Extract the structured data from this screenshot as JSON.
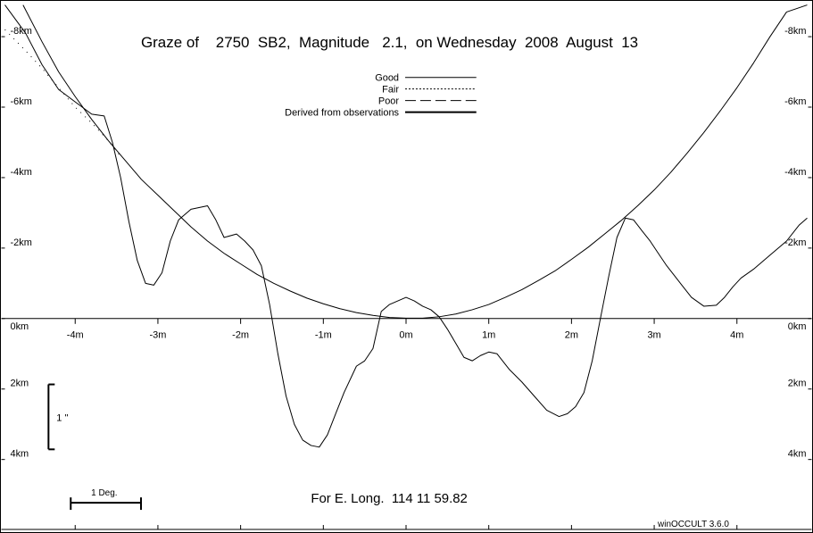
{
  "chart_data": {
    "type": "line",
    "title": "Graze of    2750  SB2,  Magnitude   2.1,  on Wednesday  2008  August  13",
    "footer": "For E. Long.  114 11 59.82",
    "software": "winOCCULT 3.6.0",
    "scale_bar_label": "1 Deg.",
    "vertical_scale_label": "1 ''",
    "xlim": [
      -4.85,
      4.85
    ],
    "ylim": [
      4.2,
      -8.9
    ],
    "x_ticks": [
      {
        "value": -4,
        "label": "-4m"
      },
      {
        "value": -3,
        "label": "-3m"
      },
      {
        "value": -2,
        "label": "-2m"
      },
      {
        "value": -1,
        "label": "-1m"
      },
      {
        "value": 0,
        "label": "0m"
      },
      {
        "value": 1,
        "label": "1m"
      },
      {
        "value": 2,
        "label": "2m"
      },
      {
        "value": 3,
        "label": "3m"
      },
      {
        "value": 4,
        "label": "4m"
      }
    ],
    "y_ticks": [
      {
        "value": -8,
        "label": "-8km"
      },
      {
        "value": -6,
        "label": "-6km"
      },
      {
        "value": -4,
        "label": "-4km"
      },
      {
        "value": -2,
        "label": "-2km"
      },
      {
        "value": 0,
        "label": "0km"
      },
      {
        "value": 2,
        "label": "2km"
      },
      {
        "value": 4,
        "label": "4km"
      }
    ],
    "legend": [
      {
        "label": "Good",
        "style": "solid"
      },
      {
        "label": "Fair",
        "style": "dotted"
      },
      {
        "label": "Poor",
        "style": "dashed"
      },
      {
        "label": "Derived from observations",
        "style": "thick"
      }
    ],
    "series": [
      {
        "style": "solid",
        "x": [
          -4.63,
          -4.4,
          -4.2,
          -4.0,
          -3.8,
          -3.6,
          -3.4,
          -3.2,
          -3.0,
          -2.8,
          -2.6,
          -2.4,
          -2.2,
          -2.0,
          -1.8,
          -1.6,
          -1.4,
          -1.2,
          -1.0,
          -0.8,
          -0.6,
          -0.4,
          -0.2,
          0.0,
          0.2,
          0.4,
          0.6,
          0.8,
          1.0,
          1.2,
          1.4,
          1.6,
          1.8,
          2.0,
          2.2,
          2.4,
          2.6,
          2.8,
          3.0,
          3.2,
          3.4,
          3.6,
          3.8,
          4.0,
          4.2,
          4.4,
          4.6,
          4.85
        ],
        "y": [
          -8.9,
          -7.85,
          -7.0,
          -6.3,
          -5.65,
          -5.05,
          -4.5,
          -3.95,
          -3.5,
          -3.05,
          -2.6,
          -2.2,
          -1.85,
          -1.55,
          -1.25,
          -1.0,
          -0.78,
          -0.58,
          -0.42,
          -0.28,
          -0.17,
          -0.09,
          -0.03,
          -0.01,
          -0.01,
          -0.05,
          -0.13,
          -0.25,
          -0.4,
          -0.6,
          -0.82,
          -1.08,
          -1.35,
          -1.68,
          -2.02,
          -2.4,
          -2.78,
          -3.2,
          -3.65,
          -4.15,
          -4.7,
          -5.28,
          -5.9,
          -6.55,
          -7.25,
          -8.0,
          -8.7,
          -8.9
        ]
      },
      {
        "style": "solid",
        "x": [
          -4.85,
          -4.6,
          -4.4,
          -4.2,
          -4.0,
          -3.8,
          -3.65,
          -3.55,
          -3.45,
          -3.35,
          -3.25,
          -3.15,
          -3.05,
          -2.95,
          -2.85,
          -2.75,
          -2.6,
          -2.4,
          -2.3,
          -2.2,
          -2.05,
          -1.95,
          -1.85,
          -1.75,
          -1.65,
          -1.55,
          -1.45,
          -1.35,
          -1.25,
          -1.15,
          -1.05,
          -0.95,
          -0.85,
          -0.75,
          -0.6,
          -0.5,
          -0.4,
          -0.3,
          -0.2,
          -0.1,
          0.0,
          0.1,
          0.2,
          0.3,
          0.4,
          0.5,
          0.6,
          0.7,
          0.8,
          0.9,
          1.0,
          1.1,
          1.25,
          1.4,
          1.55,
          1.7,
          1.85,
          1.95,
          2.05,
          2.15,
          2.25,
          2.35,
          2.45,
          2.55,
          2.65,
          2.75,
          2.85,
          2.95,
          3.05,
          3.15,
          3.3,
          3.45,
          3.6,
          3.75,
          3.85,
          3.95,
          4.05,
          4.2,
          4.4,
          4.6,
          4.75,
          4.85
        ],
        "y": [
          -8.9,
          -8.1,
          -7.2,
          -6.5,
          -6.15,
          -5.8,
          -5.75,
          -5.0,
          -4.0,
          -2.75,
          -1.65,
          -1.0,
          -0.95,
          -1.3,
          -2.2,
          -2.8,
          -3.1,
          -3.2,
          -2.8,
          -2.3,
          -2.4,
          -2.2,
          -1.95,
          -1.5,
          -0.4,
          1.0,
          2.2,
          3.0,
          3.45,
          3.6,
          3.65,
          3.3,
          2.7,
          2.1,
          1.35,
          1.2,
          0.85,
          -0.2,
          -0.4,
          -0.5,
          -0.6,
          -0.5,
          -0.35,
          -0.25,
          -0.05,
          0.3,
          0.7,
          1.1,
          1.2,
          1.05,
          0.95,
          1.0,
          1.45,
          1.8,
          2.2,
          2.6,
          2.78,
          2.7,
          2.5,
          2.1,
          1.2,
          0.0,
          -1.2,
          -2.3,
          -2.85,
          -2.8,
          -2.5,
          -2.2,
          -1.85,
          -1.5,
          -1.05,
          -0.6,
          -0.35,
          -0.38,
          -0.6,
          -0.9,
          -1.15,
          -1.4,
          -1.8,
          -2.2,
          -2.65,
          -2.85
        ]
      },
      {
        "style": "dotted",
        "x": [
          -4.85,
          -4.6,
          -4.4,
          -4.2,
          -4.0,
          -3.8,
          -3.6,
          -3.45
        ],
        "y": [
          -8.2,
          -7.6,
          -7.1,
          -6.55,
          -6.0,
          -5.55,
          -5.05,
          -4.6
        ]
      }
    ]
  }
}
